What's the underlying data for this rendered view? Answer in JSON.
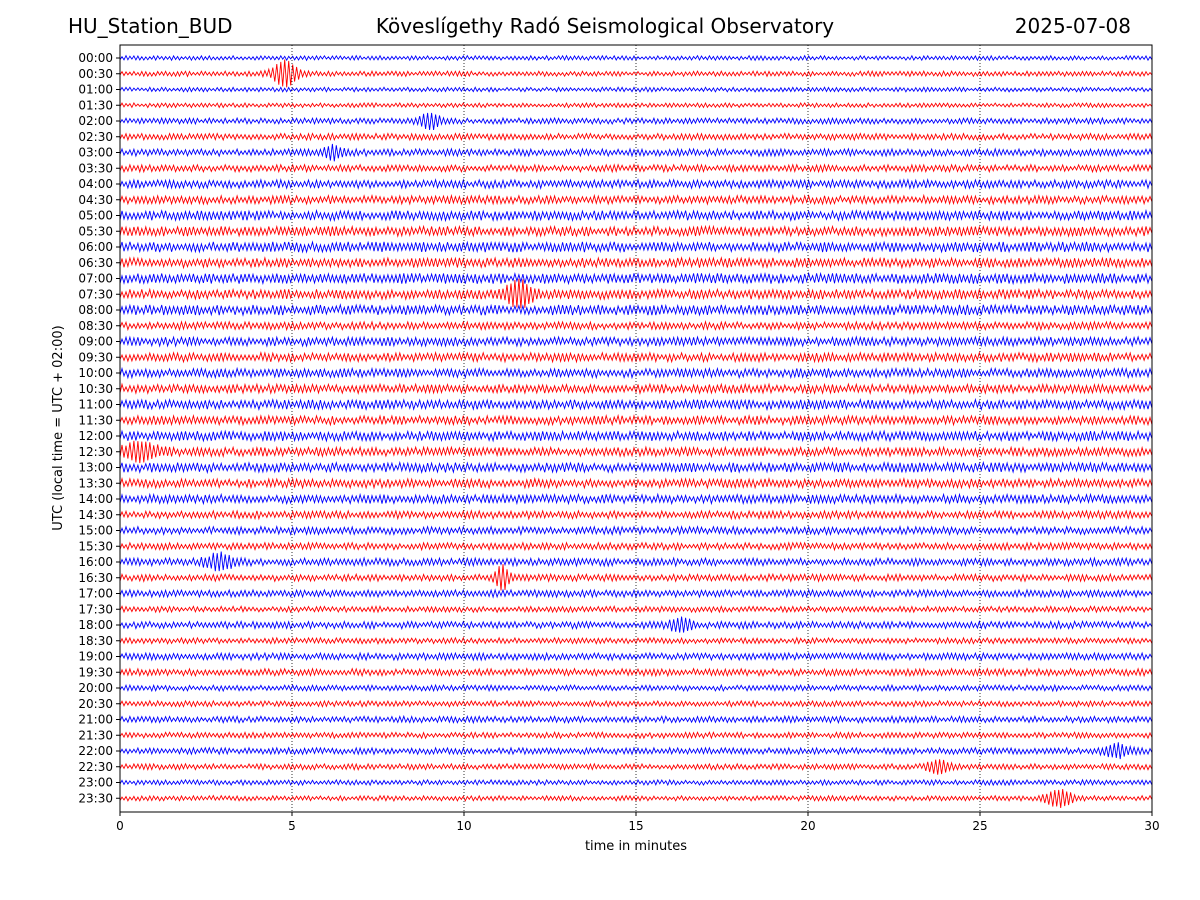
{
  "header": {
    "station": "HU_Station_BUD",
    "title": "Köveslígethy Radó Seismological Observatory",
    "date": "2025-07-08"
  },
  "chart_data": {
    "type": "line",
    "title": "Köveslígethy Radó Seismological Observatory",
    "xlabel": "time in minutes",
    "ylabel": "UTC (local time = UTC + 02:00)",
    "xlim": [
      0,
      30
    ],
    "xticks": [
      "0",
      "5",
      "10",
      "15",
      "20",
      "25",
      "30"
    ],
    "vertical_gridlines": [
      5,
      10,
      15,
      20,
      25
    ],
    "row_labels": [
      "00:00",
      "00:30",
      "01:00",
      "01:30",
      "02:00",
      "02:30",
      "03:00",
      "03:30",
      "04:00",
      "04:30",
      "05:00",
      "05:30",
      "06:00",
      "06:30",
      "07:00",
      "07:30",
      "08:00",
      "08:30",
      "09:00",
      "09:30",
      "10:00",
      "10:30",
      "11:00",
      "11:30",
      "12:00",
      "12:30",
      "13:00",
      "13:30",
      "14:00",
      "14:30",
      "15:00",
      "15:30",
      "16:00",
      "16:30",
      "17:00",
      "17:30",
      "18:00",
      "18:30",
      "19:00",
      "19:30",
      "20:00",
      "20:30",
      "21:00",
      "21:30",
      "22:00",
      "22:30",
      "23:00",
      "23:30"
    ],
    "colors": [
      "#0000ff",
      "#ff0000"
    ],
    "amplitudes": [
      0.35,
      0.4,
      0.35,
      0.35,
      0.45,
      0.5,
      0.55,
      0.55,
      0.65,
      0.65,
      0.75,
      0.75,
      0.8,
      0.75,
      0.8,
      0.75,
      0.8,
      0.6,
      0.7,
      0.7,
      0.7,
      0.7,
      0.75,
      0.7,
      0.75,
      0.7,
      0.75,
      0.7,
      0.7,
      0.6,
      0.6,
      0.55,
      0.6,
      0.55,
      0.55,
      0.45,
      0.55,
      0.45,
      0.55,
      0.55,
      0.45,
      0.45,
      0.5,
      0.45,
      0.5,
      0.45,
      0.4,
      0.4
    ],
    "events": [
      {
        "row": 1,
        "t": 4.8,
        "amp": 2.6,
        "dur": 0.35
      },
      {
        "row": 4,
        "t": 9.0,
        "amp": 1.6,
        "dur": 0.3
      },
      {
        "row": 6,
        "t": 6.2,
        "amp": 1.2,
        "dur": 0.3
      },
      {
        "row": 15,
        "t": 11.6,
        "amp": 2.4,
        "dur": 0.4
      },
      {
        "row": 25,
        "t": 0.6,
        "amp": 1.8,
        "dur": 0.5
      },
      {
        "row": 32,
        "t": 2.9,
        "amp": 1.5,
        "dur": 0.4
      },
      {
        "row": 33,
        "t": 11.1,
        "amp": 2.4,
        "dur": 0.2
      },
      {
        "row": 36,
        "t": 16.3,
        "amp": 1.3,
        "dur": 0.3
      },
      {
        "row": 44,
        "t": 29.0,
        "amp": 1.3,
        "dur": 0.35
      },
      {
        "row": 45,
        "t": 23.8,
        "amp": 1.4,
        "dur": 0.3
      },
      {
        "row": 47,
        "t": 27.3,
        "amp": 1.6,
        "dur": 0.4
      }
    ]
  }
}
